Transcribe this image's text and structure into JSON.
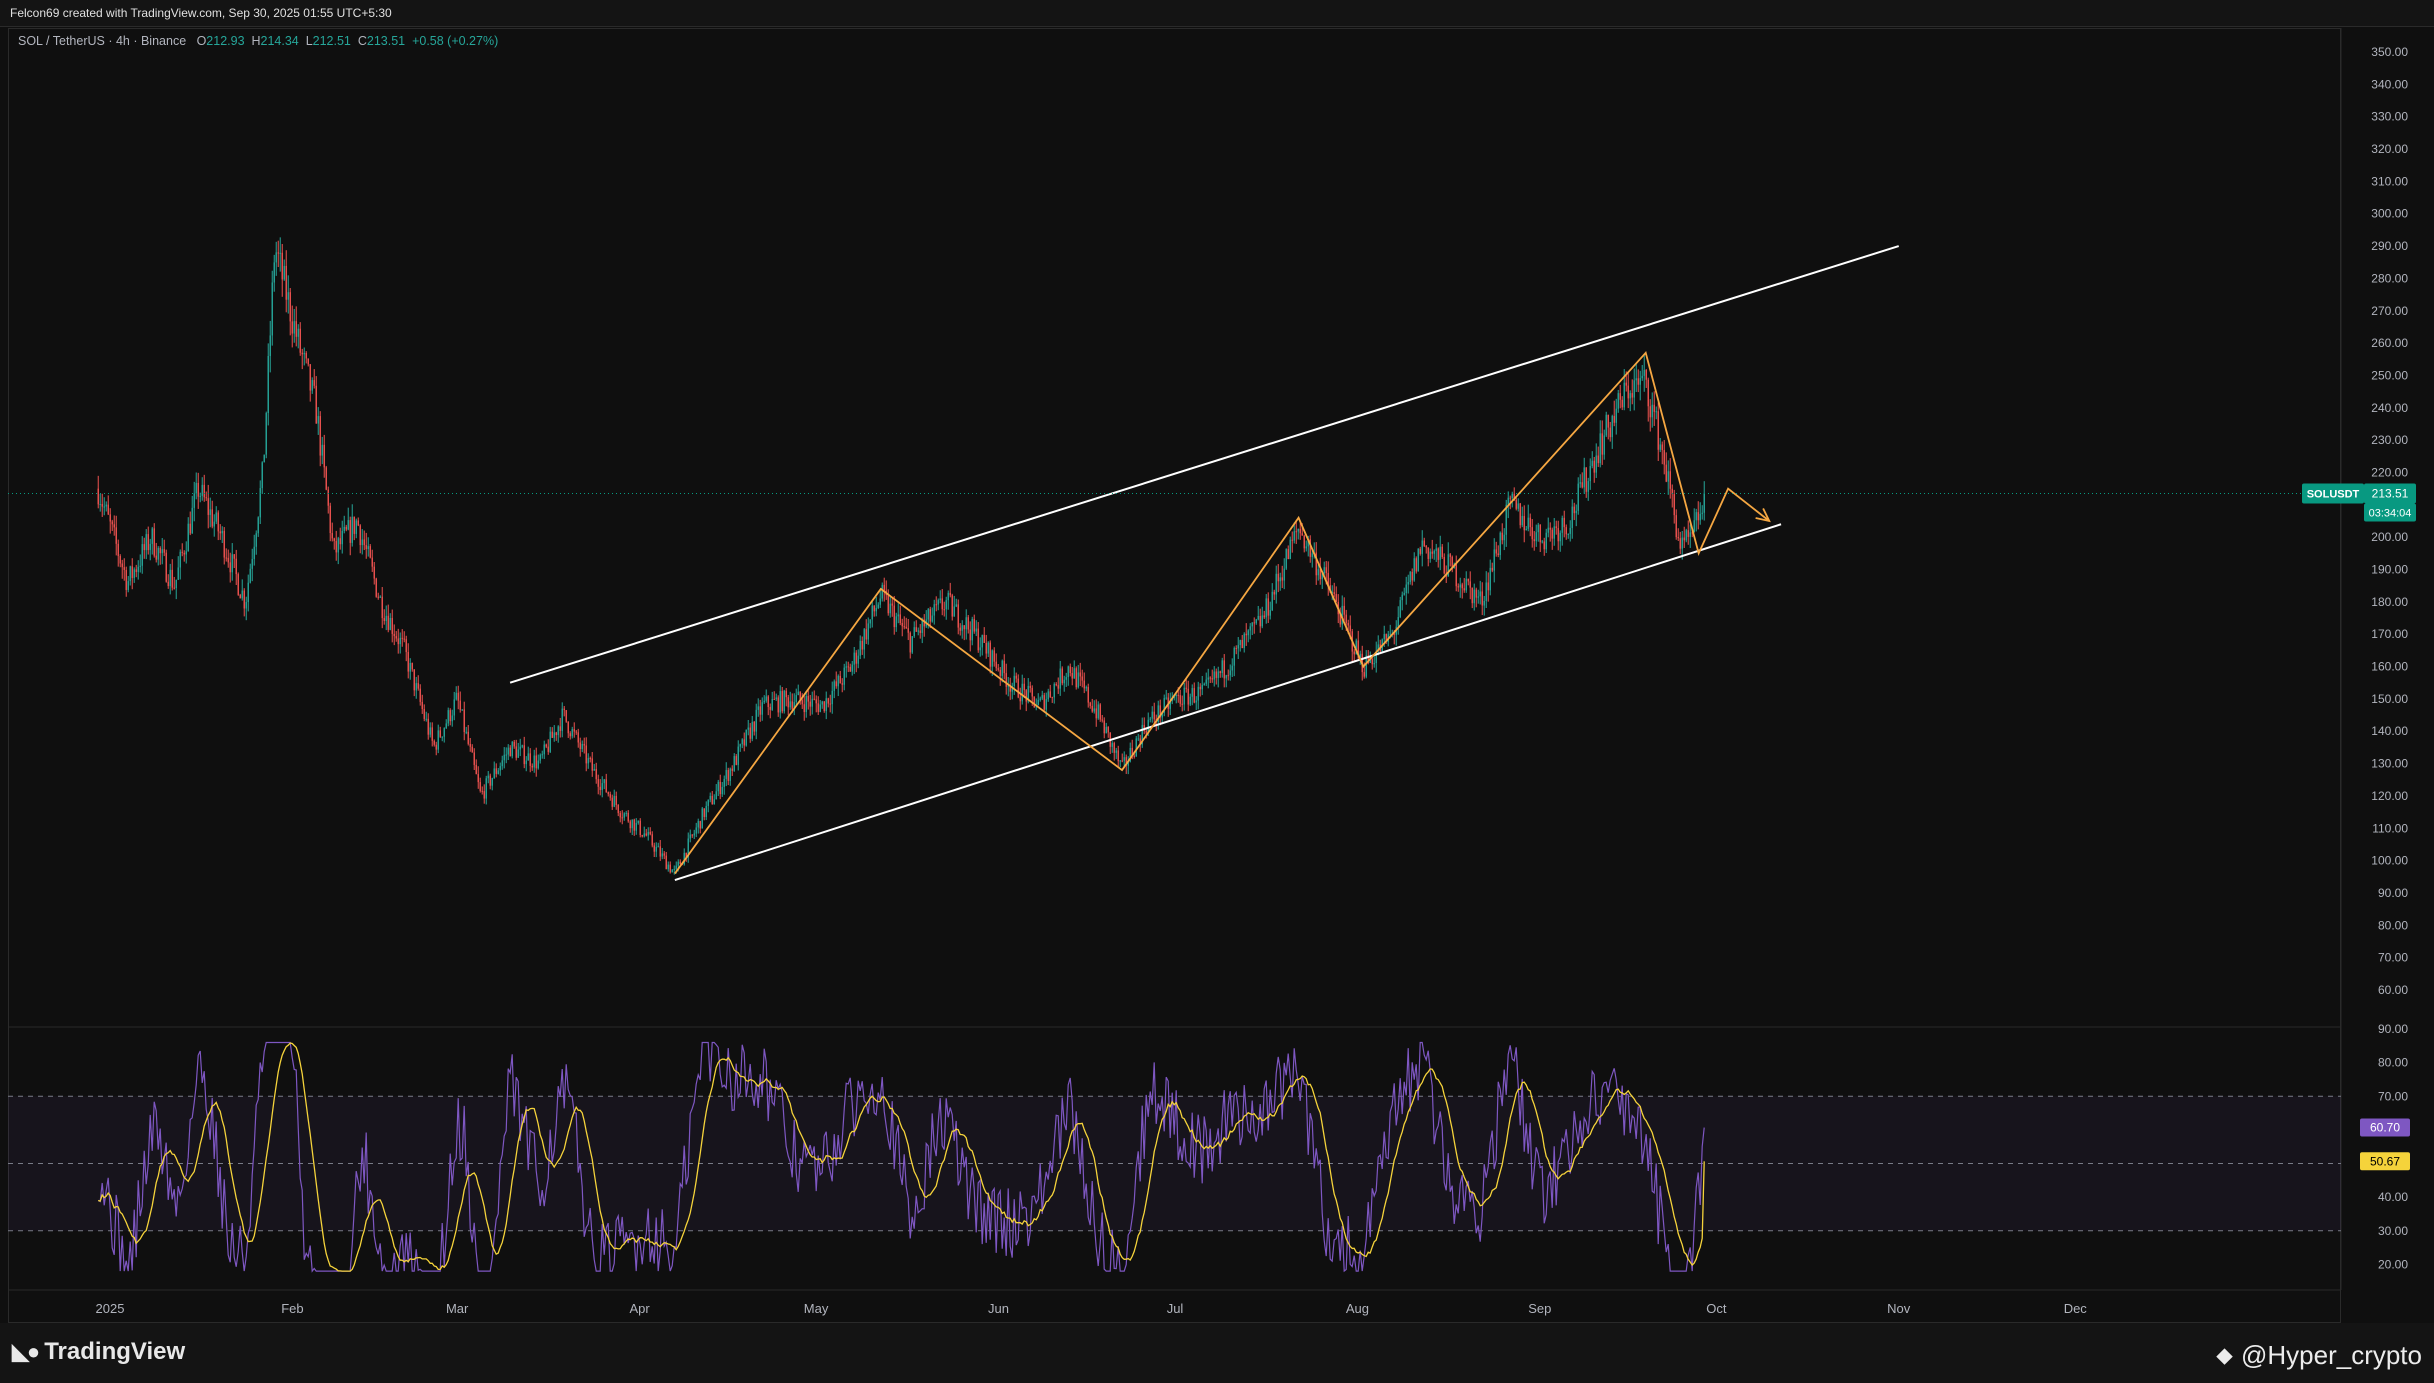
{
  "header": {
    "created_by": "Felcon69 created with TradingView.com, Sep 30, 2025 01:55 UTC+5:30"
  },
  "legend": {
    "symbol": "SOL / TetherUS · 4h · Binance",
    "open_label": "O",
    "open": "212.93",
    "high_label": "H",
    "high": "214.34",
    "low_label": "L",
    "low": "212.51",
    "close_label": "C",
    "close": "213.51",
    "change": "+0.58 (+0.27%)"
  },
  "price_axis": {
    "ticks": [
      "350.00",
      "340.00",
      "330.00",
      "320.00",
      "310.00",
      "300.00",
      "290.00",
      "280.00",
      "270.00",
      "260.00",
      "250.00",
      "240.00",
      "230.00",
      "220.00",
      "210.00",
      "200.00",
      "190.00",
      "180.00",
      "170.00",
      "160.00",
      "150.00",
      "140.00",
      "130.00",
      "120.00",
      "110.00",
      "100.00",
      "90.00",
      "80.00",
      "70.00",
      "60.00"
    ],
    "price_tag": {
      "symbol": "SOLUSDT",
      "price": "213.51",
      "countdown": "03:34:04"
    }
  },
  "rsi_axis": {
    "ticks": [
      "90.00",
      "80.00",
      "70.00",
      "60.00",
      "50.00",
      "40.00",
      "30.00",
      "20.00"
    ],
    "rsi_value": "60.70",
    "ma_value": "50.67"
  },
  "time_axis": {
    "labels": [
      "2025",
      "Feb",
      "Mar",
      "Apr",
      "May",
      "Jun",
      "Jul",
      "Aug",
      "Sep",
      "Oct",
      "Nov",
      "Dec"
    ]
  },
  "footer": {
    "brand": "TradingView",
    "watermark": "@Hyper_crypto"
  },
  "colors": {
    "up": "#26a69a",
    "down": "#ef5350",
    "rsi": "#7e57c2",
    "rsi_ma": "#f5d33b",
    "pattern": "#f5a742",
    "channel": "#ffffff",
    "price_tag": "#089981"
  },
  "chart_data": {
    "type": "candlestick",
    "symbol": "SOL / TetherUS",
    "timeframe": "4h",
    "ylim": [
      55,
      355
    ],
    "current_price": 213.51,
    "price_path": [
      {
        "date": "2024-12-30",
        "price": 215
      },
      {
        "date": "2025-01-04",
        "price": 186
      },
      {
        "date": "2025-01-08",
        "price": 200
      },
      {
        "date": "2025-01-12",
        "price": 185
      },
      {
        "date": "2025-01-16",
        "price": 215
      },
      {
        "date": "2025-01-20",
        "price": 200
      },
      {
        "date": "2025-01-24",
        "price": 180
      },
      {
        "date": "2025-01-27",
        "price": 220
      },
      {
        "date": "2025-01-29",
        "price": 290
      },
      {
        "date": "2025-02-02",
        "price": 260
      },
      {
        "date": "2025-02-05",
        "price": 240
      },
      {
        "date": "2025-02-08",
        "price": 195
      },
      {
        "date": "2025-02-12",
        "price": 205
      },
      {
        "date": "2025-02-16",
        "price": 180
      },
      {
        "date": "2025-02-20",
        "price": 165
      },
      {
        "date": "2025-02-25",
        "price": 135
      },
      {
        "date": "2025-03-01",
        "price": 150
      },
      {
        "date": "2025-03-05",
        "price": 120
      },
      {
        "date": "2025-03-10",
        "price": 135
      },
      {
        "date": "2025-03-15",
        "price": 130
      },
      {
        "date": "2025-03-19",
        "price": 145
      },
      {
        "date": "2025-03-24",
        "price": 128
      },
      {
        "date": "2025-03-29",
        "price": 115
      },
      {
        "date": "2025-04-02",
        "price": 108
      },
      {
        "date": "2025-04-07",
        "price": 96
      },
      {
        "date": "2025-04-12",
        "price": 115
      },
      {
        "date": "2025-04-17",
        "price": 130
      },
      {
        "date": "2025-04-22",
        "price": 148
      },
      {
        "date": "2025-04-27",
        "price": 150
      },
      {
        "date": "2025-05-02",
        "price": 148
      },
      {
        "date": "2025-05-07",
        "price": 160
      },
      {
        "date": "2025-05-12",
        "price": 182
      },
      {
        "date": "2025-05-17",
        "price": 168
      },
      {
        "date": "2025-05-23",
        "price": 180
      },
      {
        "date": "2025-05-28",
        "price": 170
      },
      {
        "date": "2025-06-03",
        "price": 155
      },
      {
        "date": "2025-06-08",
        "price": 148
      },
      {
        "date": "2025-06-13",
        "price": 160
      },
      {
        "date": "2025-06-18",
        "price": 145
      },
      {
        "date": "2025-06-22",
        "price": 128
      },
      {
        "date": "2025-06-26",
        "price": 142
      },
      {
        "date": "2025-07-01",
        "price": 150
      },
      {
        "date": "2025-07-06",
        "price": 152
      },
      {
        "date": "2025-07-11",
        "price": 163
      },
      {
        "date": "2025-07-16",
        "price": 175
      },
      {
        "date": "2025-07-22",
        "price": 203
      },
      {
        "date": "2025-07-27",
        "price": 185
      },
      {
        "date": "2025-08-02",
        "price": 160
      },
      {
        "date": "2025-08-07",
        "price": 170
      },
      {
        "date": "2025-08-12",
        "price": 198
      },
      {
        "date": "2025-08-17",
        "price": 190
      },
      {
        "date": "2025-08-22",
        "price": 180
      },
      {
        "date": "2025-08-27",
        "price": 210
      },
      {
        "date": "2025-09-01",
        "price": 200
      },
      {
        "date": "2025-09-06",
        "price": 205
      },
      {
        "date": "2025-09-11",
        "price": 228
      },
      {
        "date": "2025-09-16",
        "price": 246
      },
      {
        "date": "2025-09-19",
        "price": 248
      },
      {
        "date": "2025-09-22",
        "price": 225
      },
      {
        "date": "2025-09-25",
        "price": 196
      },
      {
        "date": "2025-09-27",
        "price": 200
      },
      {
        "date": "2025-09-29",
        "price": 213.51
      }
    ],
    "channel_lines": [
      {
        "name": "upper",
        "points": [
          {
            "date": "2025-03-10",
            "price": 155
          },
          {
            "date": "2025-11-01",
            "price": 290
          }
        ]
      },
      {
        "name": "lower",
        "points": [
          {
            "date": "2025-04-07",
            "price": 94
          },
          {
            "date": "2025-10-12",
            "price": 204
          }
        ]
      }
    ],
    "pattern_path": [
      {
        "date": "2025-04-07",
        "price": 96
      },
      {
        "date": "2025-05-12",
        "price": 184
      },
      {
        "date": "2025-06-22",
        "price": 128
      },
      {
        "date": "2025-07-22",
        "price": 206
      },
      {
        "date": "2025-08-02",
        "price": 160
      },
      {
        "date": "2025-09-19",
        "price": 257
      },
      {
        "date": "2025-09-28",
        "price": 195
      },
      {
        "date": "2025-10-03",
        "price": 215
      },
      {
        "date": "2025-10-10",
        "price": 205
      }
    ],
    "rsi": {
      "ylim": [
        15,
        92
      ],
      "band": [
        30,
        70
      ],
      "midline": 50,
      "rsi_value": 60.7,
      "ma_value": 50.67
    }
  }
}
